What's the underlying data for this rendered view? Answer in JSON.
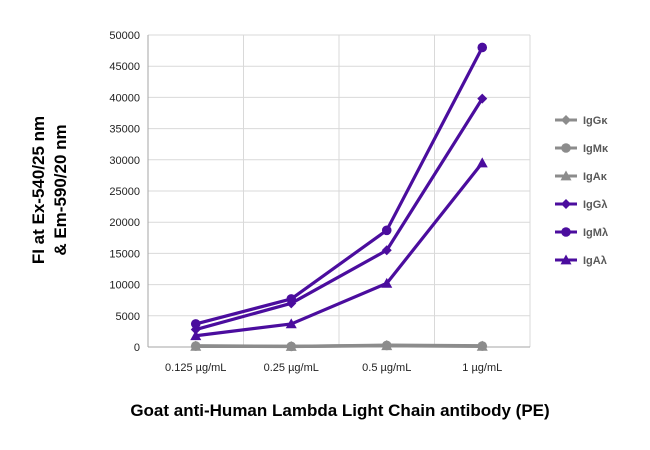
{
  "chart_data": {
    "type": "line",
    "title": "",
    "xlabel": "Goat anti-Human Lambda Light Chain antibody (PE)",
    "ylabel_lines": [
      "FI at Ex-540/25 nm",
      "& Em-590/20 nm"
    ],
    "categories": [
      "0.125 µg/mL",
      "0.25 µg/mL",
      "0.5 µg/mL",
      "1 µg/mL"
    ],
    "ylim": [
      0,
      50000
    ],
    "yticks": [
      "0",
      "5000",
      "10000",
      "15000",
      "20000",
      "25000",
      "30000",
      "35000",
      "40000",
      "45000",
      "50000"
    ],
    "grid": true,
    "legend_position": "right",
    "series": [
      {
        "name": "IgGκ",
        "values": [
          200,
          100,
          300,
          200
        ],
        "color": "#8c8c8c",
        "marker": "diamond"
      },
      {
        "name": "IgMκ",
        "values": [
          150,
          100,
          250,
          150
        ],
        "color": "#8c8c8c",
        "marker": "circle"
      },
      {
        "name": "IgAκ",
        "values": [
          100,
          80,
          200,
          100
        ],
        "color": "#8c8c8c",
        "marker": "triangle"
      },
      {
        "name": "IgGλ",
        "values": [
          2800,
          7000,
          15500,
          39800
        ],
        "color": "#4b0d9e",
        "marker": "diamond"
      },
      {
        "name": "IgMλ",
        "values": [
          3700,
          7700,
          18700,
          48000
        ],
        "color": "#4b0d9e",
        "marker": "circle"
      },
      {
        "name": "IgAλ",
        "values": [
          1800,
          3700,
          10200,
          29500
        ],
        "color": "#4b0d9e",
        "marker": "triangle"
      }
    ]
  }
}
